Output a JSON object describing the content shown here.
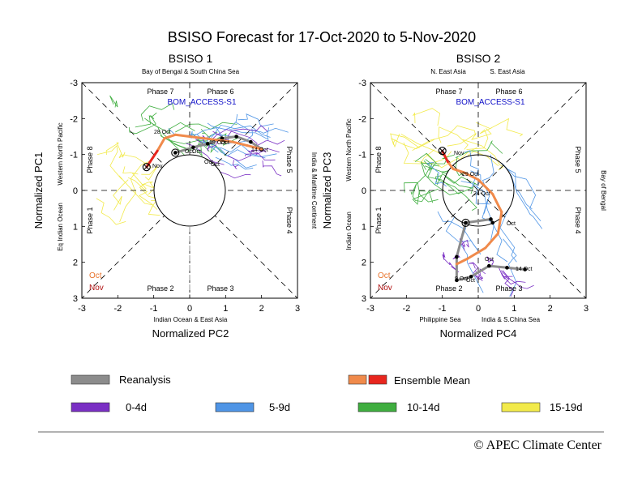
{
  "title": "BSISO Forecast for 17-Oct-2020 to 5-Nov-2020",
  "copyright": "© APEC Climate Center",
  "model_label": "BOM_ACCESS-S1",
  "colors": {
    "reanalysis": "#8c8c8c",
    "ensemble_mean_oct": "#f08a4b",
    "ensemble_mean_nov": "#e8261e",
    "d0_4": "#7a2fc4",
    "d5_9": "#4f95e6",
    "d10_14": "#3fae3f",
    "d15_19": "#f2ea4a",
    "oct_text": "#e8732c",
    "nov_text": "#b01010",
    "model_text": "#1010c8"
  },
  "legend": {
    "reanalysis": "Reanalysis",
    "ensemble_mean": "Ensemble Mean",
    "d0_4": "0-4d",
    "d5_9": "5-9d",
    "d10_14": "10-14d",
    "d15_19": "15-19d"
  },
  "panels": [
    {
      "title": "BSISO 1",
      "xlabel": "Normalized PC2",
      "ylabel": "Normalized PC1",
      "top_region": "Bay of Bengal & South China Sea",
      "bottom_region": "Indian Ocean & East Asia",
      "left_region_a": "Eq Indian Ocean",
      "left_region_b": "Western North Pacific",
      "right_region": "India & Maritime Continent",
      "phases": {
        "p1": "Phase 1",
        "p2": "Phase 2",
        "p3": "Phase 3",
        "p4": "Phase 4",
        "p5": "Phase 5",
        "p6": "Phase 6",
        "p7": "Phase 7",
        "p8": "Phase 8"
      },
      "month_labels": {
        "oct": "Oct",
        "nov": "Nov"
      },
      "point_labels": [
        "28 Oct",
        "Oct",
        "Oct",
        "19 Oct",
        "Oct",
        "Oct",
        "14 Oct",
        "Oct",
        "Nov"
      ]
    },
    {
      "title": "BSISO 2",
      "xlabel": "Normalized PC4",
      "ylabel": "Normalized PC3",
      "top_region_a": "N. East Asia",
      "top_region_b": "S. East Asia",
      "bottom_region_a": "Philippine Sea",
      "bottom_region_b": "India & S.China Sea",
      "left_region_a": "Indian Ocean",
      "left_region_b": "Western North Pacific",
      "right_region": "Bay of Bengal",
      "phases": {
        "p1": "Phase 1",
        "p2": "Phase 2",
        "p3": "Phase 3",
        "p4": "Phase 4",
        "p5": "Phase 5",
        "p6": "Phase 6",
        "p7": "Phase 7",
        "p8": "Phase 8"
      },
      "month_labels": {
        "oct": "Oct",
        "nov": "Nov"
      },
      "point_labels": [
        "29 Oct",
        "24 Oct",
        "Oct",
        "Oct",
        "14 Oct",
        "9 Oct",
        "Oct",
        "Nov"
      ]
    }
  ],
  "chart_data": [
    {
      "type": "line",
      "title": "BSISO 1",
      "xlabel": "Normalized PC2",
      "ylabel": "Normalized PC1",
      "xlim": [
        -3,
        3
      ],
      "ylim": [
        3,
        -3
      ],
      "xticks": [
        -3,
        -2,
        -1,
        0,
        1,
        2,
        3
      ],
      "yticks": [
        -3,
        -2,
        -1,
        0,
        1,
        2,
        3
      ],
      "series": [
        {
          "name": "Reanalysis",
          "x": [
            2.0,
            1.7,
            1.3,
            0.9,
            0.5,
            0.1,
            -0.4
          ],
          "y": [
            -1.15,
            -1.35,
            -1.5,
            -1.45,
            -1.3,
            -1.2,
            -1.05
          ]
        },
        {
          "name": "Ensemble Mean",
          "x": [
            2.0,
            1.6,
            1.2,
            0.8,
            0.4,
            0.0,
            -0.4,
            -0.7,
            -0.9,
            -1.1,
            -1.2
          ],
          "y": [
            -1.15,
            -1.25,
            -1.35,
            -1.4,
            -1.45,
            -1.5,
            -1.55,
            -1.45,
            -1.1,
            -0.8,
            -0.65
          ]
        }
      ]
    },
    {
      "type": "line",
      "title": "BSISO 2",
      "xlabel": "Normalized PC4",
      "ylabel": "Normalized PC3",
      "xlim": [
        -3,
        3
      ],
      "ylim": [
        3,
        -3
      ],
      "xticks": [
        -3,
        -2,
        -1,
        0,
        1,
        2,
        3
      ],
      "yticks": [
        -3,
        -2,
        -1,
        0,
        1,
        2,
        3
      ],
      "series": [
        {
          "name": "Reanalysis",
          "x": [
            1.3,
            0.8,
            0.3,
            -0.2,
            -0.6,
            -0.6,
            -0.35,
            0.35,
            0.4
          ],
          "y": [
            2.2,
            2.15,
            2.1,
            2.4,
            2.5,
            1.85,
            0.9,
            0.8,
            0.9
          ]
        },
        {
          "name": "Ensemble Mean",
          "x": [
            -0.6,
            -0.3,
            0.2,
            0.55,
            0.65,
            0.4,
            0.0,
            -0.4,
            -0.7,
            -0.85,
            -0.95,
            -1.0
          ],
          "y": [
            2.05,
            1.9,
            1.6,
            1.2,
            0.6,
            0.1,
            -0.3,
            -0.5,
            -0.6,
            -0.8,
            -1.0,
            -1.1
          ]
        }
      ]
    }
  ]
}
